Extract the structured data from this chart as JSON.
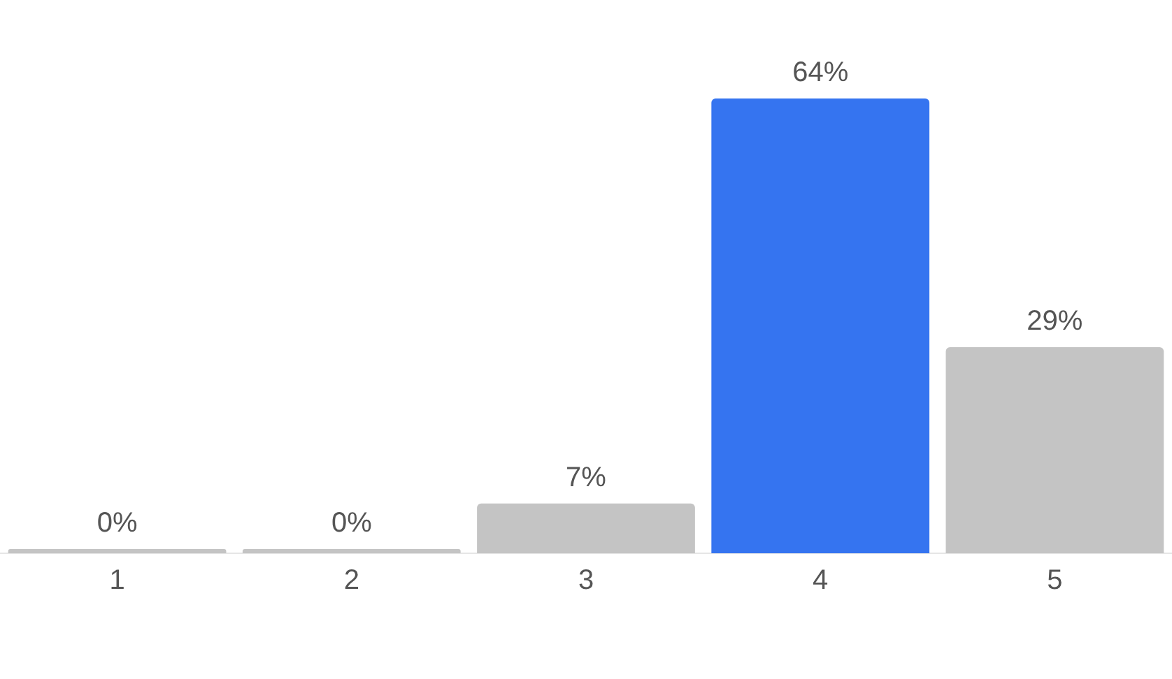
{
  "chart_data": {
    "type": "bar",
    "categories": [
      "1",
      "2",
      "3",
      "4",
      "5"
    ],
    "values": [
      0,
      0,
      7,
      64,
      29
    ],
    "colors": [
      "#c4c4c4",
      "#c4c4c4",
      "#c4c4c4",
      "#3574f0",
      "#c4c4c4"
    ],
    "value_labels": [
      "0%",
      "0%",
      "7%",
      "64%",
      "29%"
    ],
    "grid": false,
    "legend": false
  }
}
